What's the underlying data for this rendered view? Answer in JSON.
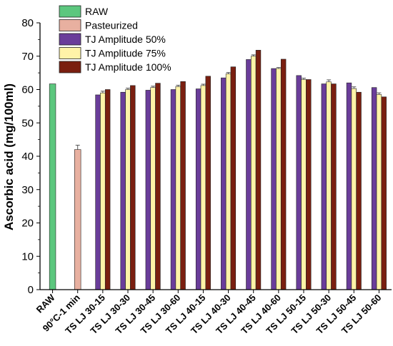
{
  "chart_data": {
    "type": "bar",
    "ylabel": "Ascorbic acid (mg/100ml)",
    "xlabel": "",
    "ylim": [
      0,
      80
    ],
    "yticks": [
      0,
      10,
      20,
      30,
      40,
      50,
      60,
      70,
      80
    ],
    "grid": false,
    "legend_position": "top-left",
    "categories": [
      "RAW",
      "90°C-1 min",
      "TS LJ 30-15",
      "TS LJ 30-30",
      "TS LJ 30-45",
      "TS LJ 30-60",
      "TS LJ 40-15",
      "TS LJ 40-30",
      "TS LJ 40-45",
      "TS LJ 40-60",
      "TS LJ 50-15",
      "TS LJ 50-30",
      "TS LJ 50-45",
      "TS LJ 50-60"
    ],
    "series": [
      {
        "name": "RAW",
        "color": "#5cc77e",
        "values": [
          61.7,
          null,
          null,
          null,
          null,
          null,
          null,
          null,
          null,
          null,
          null,
          null,
          null,
          null
        ]
      },
      {
        "name": "Pasteurized",
        "color": "#e8b0a0",
        "values": [
          null,
          42.0,
          null,
          null,
          null,
          null,
          null,
          null,
          null,
          null,
          null,
          null,
          null,
          null
        ],
        "errors": [
          null,
          1.3,
          null,
          null,
          null,
          null,
          null,
          null,
          null,
          null,
          null,
          null,
          null,
          null
        ]
      },
      {
        "name": "TJ Amplitude 50%",
        "color": "#6a3d9a",
        "values": [
          null,
          null,
          58.4,
          59.2,
          59.8,
          60.0,
          60.2,
          63.5,
          69.0,
          66.3,
          64.2,
          61.7,
          62.0,
          60.6
        ]
      },
      {
        "name": "TJ Amplitude 75%",
        "color": "#fff3a8",
        "values": [
          null,
          null,
          59.0,
          60.0,
          60.6,
          60.9,
          61.2,
          64.7,
          70.0,
          66.3,
          63.0,
          62.3,
          60.3,
          58.5
        ],
        "errors": [
          null,
          null,
          0.5,
          0.4,
          0.4,
          0.4,
          0.4,
          0.4,
          0.4,
          0.3,
          0.4,
          0.6,
          0.5,
          0.5
        ]
      },
      {
        "name": "TJ Amplitude 100%",
        "color": "#7a1f10",
        "values": [
          null,
          null,
          60.0,
          61.2,
          61.9,
          62.4,
          64.0,
          66.8,
          71.8,
          69.1,
          63.0,
          61.7,
          59.2,
          57.8
        ]
      }
    ]
  }
}
